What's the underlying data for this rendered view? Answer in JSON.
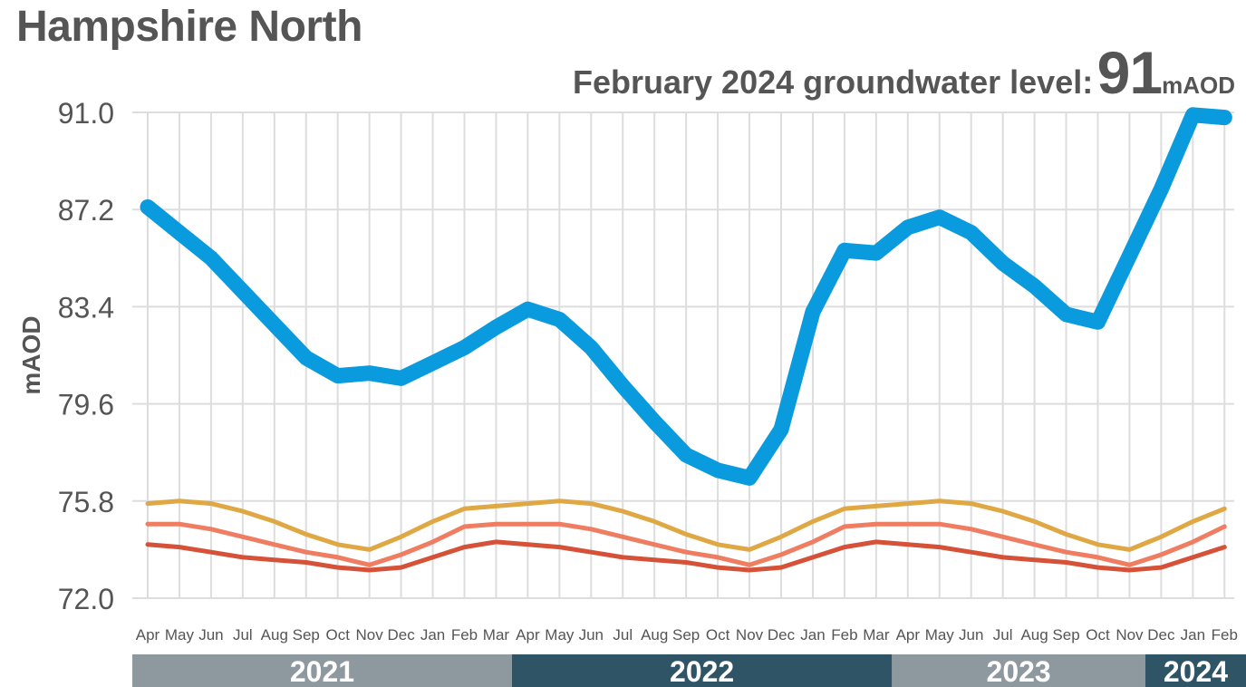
{
  "title": "Hampshire North",
  "headline": {
    "label": "February 2024 groundwater level:",
    "value": "91",
    "unit": "mAOD"
  },
  "chart_data": {
    "type": "line",
    "ylabel": "mAOD",
    "ylim": [
      72.0,
      91.0
    ],
    "y_ticks": [
      "91.0",
      "87.2",
      "83.4",
      "79.6",
      "75.8",
      "72.0"
    ],
    "categories": [
      "Apr",
      "May",
      "Jun",
      "Jul",
      "Aug",
      "Sep",
      "Oct",
      "Nov",
      "Dec",
      "Jan",
      "Feb",
      "Mar",
      "Apr",
      "May",
      "Jun",
      "Jul",
      "Aug",
      "Sep",
      "Oct",
      "Nov",
      "Dec",
      "Jan",
      "Feb",
      "Mar",
      "Apr",
      "May",
      "Jun",
      "Jul",
      "Aug",
      "Sep",
      "Oct",
      "Nov",
      "Dec",
      "Jan",
      "Feb"
    ],
    "years": [
      {
        "label": "2021",
        "start": 0,
        "end": 11,
        "color": "#8e989f"
      },
      {
        "label": "2022",
        "start": 12,
        "end": 23,
        "color": "#2e5466"
      },
      {
        "label": "2023",
        "start": 24,
        "end": 31,
        "color": "#8e989f"
      },
      {
        "label": "2024",
        "start": 32,
        "end": 34,
        "color": "#2e5466"
      }
    ],
    "series": [
      {
        "color": "#d55137",
        "width": 5,
        "values": [
          74.1,
          74.0,
          73.8,
          73.6,
          73.5,
          73.4,
          73.2,
          73.1,
          73.2,
          73.6,
          74.0,
          74.2,
          74.1,
          74.0,
          73.8,
          73.6,
          73.5,
          73.4,
          73.2,
          73.1,
          73.2,
          73.6,
          74.0,
          74.2,
          74.1,
          74.0,
          73.8,
          73.6,
          73.5,
          73.4,
          73.2,
          73.1,
          73.2,
          73.6,
          74.0
        ]
      },
      {
        "color": "#ef7d61",
        "width": 5,
        "values": [
          74.9,
          74.9,
          74.7,
          74.4,
          74.1,
          73.8,
          73.6,
          73.3,
          73.7,
          74.2,
          74.8,
          74.9,
          74.9,
          74.9,
          74.7,
          74.4,
          74.1,
          73.8,
          73.6,
          73.3,
          73.7,
          74.2,
          74.8,
          74.9,
          74.9,
          74.9,
          74.7,
          74.4,
          74.1,
          73.8,
          73.6,
          73.3,
          73.7,
          74.2,
          74.8
        ]
      },
      {
        "color": "#e0a845",
        "width": 5,
        "values": [
          75.7,
          75.8,
          75.7,
          75.4,
          75.0,
          74.5,
          74.1,
          73.9,
          74.4,
          75.0,
          75.5,
          75.6,
          75.7,
          75.8,
          75.7,
          75.4,
          75.0,
          74.5,
          74.1,
          73.9,
          74.4,
          75.0,
          75.5,
          75.6,
          75.7,
          75.8,
          75.7,
          75.4,
          75.0,
          74.5,
          74.1,
          73.9,
          74.4,
          75.0,
          75.5
        ]
      },
      {
        "color": "#0a9ade",
        "width": 17,
        "values": [
          87.3,
          86.3,
          85.3,
          84.0,
          82.7,
          81.4,
          80.7,
          80.8,
          80.6,
          81.2,
          81.8,
          82.6,
          83.3,
          82.9,
          81.8,
          80.3,
          78.9,
          77.6,
          77.0,
          76.7,
          78.6,
          83.2,
          85.6,
          85.5,
          86.5,
          86.9,
          86.3,
          85.1,
          84.2,
          83.1,
          82.8,
          85.4,
          88.0,
          90.9,
          90.8
        ]
      }
    ]
  }
}
